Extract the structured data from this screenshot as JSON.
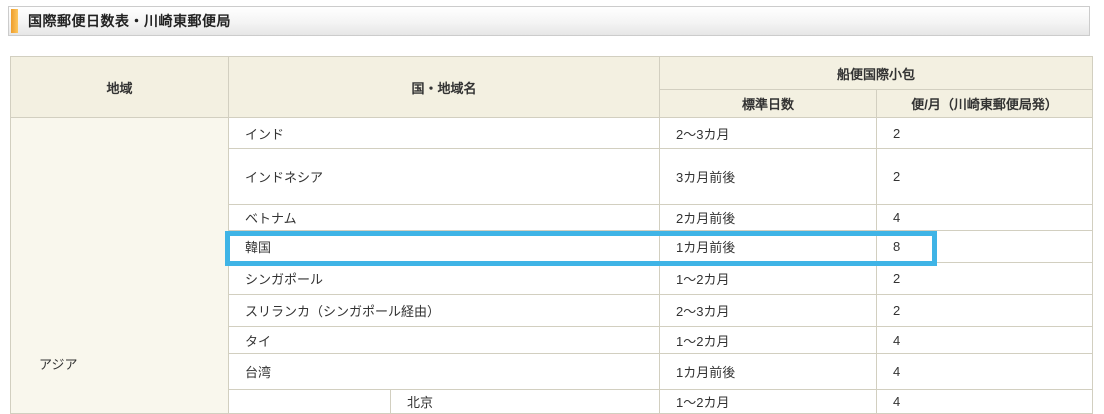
{
  "page_title": "国際郵便日数表・川崎東郵便局",
  "table": {
    "headers": {
      "region": "地域",
      "country": "国・地域名",
      "group": "船便国際小包",
      "days": "標準日数",
      "freq": "便/月（川崎東郵便局発）"
    },
    "region_label": "アジア",
    "rows": [
      {
        "country": "インド",
        "days": "2〜3カ月",
        "freq": "2",
        "highlighted": false
      },
      {
        "country": "インドネシア",
        "days": "3カ月前後",
        "freq": "2",
        "highlighted": false
      },
      {
        "country": "ベトナム",
        "days": "2カ月前後",
        "freq": "4",
        "highlighted": false
      },
      {
        "country": "韓国",
        "days": "1カ月前後",
        "freq": "8",
        "highlighted": true
      },
      {
        "country": "シンガポール",
        "days": "1〜2カ月",
        "freq": "2",
        "highlighted": false
      },
      {
        "country": "スリランカ（シンガポール経由）",
        "days": "2〜3カ月",
        "freq": "2",
        "highlighted": false
      },
      {
        "country": "タイ",
        "days": "1〜2カ月",
        "freq": "4",
        "highlighted": false
      },
      {
        "country": "台湾",
        "days": "1カ月前後",
        "freq": "4",
        "highlighted": false
      }
    ],
    "partial_row": {
      "city": "北京",
      "days": "1〜2カ月",
      "freq": "4"
    }
  },
  "colors": {
    "highlight_border": "#3fb4e6",
    "accent_orange": "#f2a93c",
    "header_bg": "#f3f0e1",
    "region_bg": "#f9f7ed"
  }
}
